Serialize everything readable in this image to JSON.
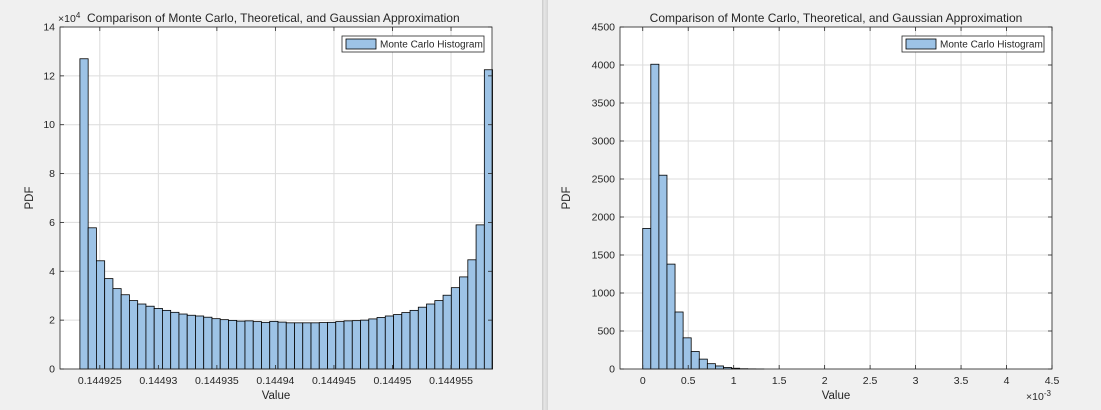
{
  "chart_data": [
    {
      "type": "bar",
      "title": "Comparison of Monte Carlo, Theoretical, and Gaussian Approximation",
      "xlabel": "Value",
      "ylabel": "PDF",
      "xlim": [
        0.1449216,
        0.1449585
      ],
      "ylim": [
        0,
        140000
      ],
      "y_exponent_label": "×10",
      "y_exponent_power": "4",
      "y_scale": 10000,
      "x_exponent_label": "",
      "x_exponent_power": "",
      "x_scale": 1,
      "x_tick_values": [
        0.144925,
        0.14493,
        0.144935,
        0.14494,
        0.144945,
        0.14495,
        0.144955
      ],
      "x_tick_labels": [
        "0.144925",
        "0.14493",
        "0.144935",
        "0.14494",
        "0.144945",
        "0.14495",
        "0.144955"
      ],
      "y_tick_values": [
        0,
        20000,
        40000,
        60000,
        80000,
        100000,
        120000,
        140000
      ],
      "y_tick_labels": [
        "0",
        "2",
        "4",
        "6",
        "8",
        "10",
        "12",
        "14"
      ],
      "grid": true,
      "legend_position": "top-right",
      "series": [
        {
          "name": "Monte Carlo Histogram",
          "color": "#9dc3e6",
          "edge_color": "#000000",
          "bin_start": 0.1449233,
          "bin_width": 7.05e-07,
          "values": [
            127000,
            57800,
            44300,
            37000,
            32900,
            30400,
            28000,
            26600,
            25700,
            24800,
            24000,
            23200,
            22500,
            22000,
            21700,
            21200,
            20600,
            20200,
            19900,
            19600,
            19700,
            19400,
            19100,
            19500,
            19200,
            18900,
            18900,
            18900,
            18900,
            19000,
            19100,
            19400,
            19700,
            19800,
            20000,
            20500,
            21100,
            21700,
            22300,
            23100,
            24000,
            25300,
            26600,
            28000,
            30200,
            33300,
            37700,
            44700,
            59000,
            122500
          ]
        }
      ]
    },
    {
      "type": "bar",
      "title": "Comparison of Monte Carlo, Theoretical, and Gaussian Approximation",
      "xlabel": "Value",
      "ylabel": "PDF",
      "xlim": [
        -0.00025,
        0.0045
      ],
      "ylim": [
        0,
        4500
      ],
      "y_exponent_label": "",
      "y_exponent_power": "",
      "y_scale": 1,
      "x_exponent_label": "×10",
      "x_exponent_power": "-3",
      "x_scale": 0.001,
      "x_tick_values": [
        0,
        0.0005,
        0.001,
        0.0015,
        0.002,
        0.0025,
        0.003,
        0.0035,
        0.004,
        0.0045
      ],
      "x_tick_labels": [
        "0",
        "0.5",
        "1",
        "1.5",
        "2",
        "2.5",
        "3",
        "3.5",
        "4",
        "4.5"
      ],
      "y_tick_values": [
        0,
        500,
        1000,
        1500,
        2000,
        2500,
        3000,
        3500,
        4000,
        4500
      ],
      "y_tick_labels": [
        "0",
        "500",
        "1000",
        "1500",
        "2000",
        "2500",
        "3000",
        "3500",
        "4000",
        "4500"
      ],
      "grid": true,
      "legend_position": "top-right",
      "series": [
        {
          "name": "Monte Carlo Histogram",
          "color": "#9dc3e6",
          "edge_color": "#000000",
          "bin_start": 0,
          "bin_width": 8.88e-05,
          "values": [
            1850,
            4010,
            2550,
            1380,
            750,
            410,
            230,
            130,
            70,
            40,
            20,
            10,
            4,
            2,
            1,
            0,
            0,
            0,
            0,
            0,
            0,
            0,
            0,
            0,
            0,
            0,
            0,
            0,
            0,
            0,
            0,
            0,
            0,
            0,
            0,
            0,
            0,
            0,
            0,
            0,
            0,
            0,
            0,
            0,
            0,
            0,
            0,
            0,
            0
          ]
        }
      ]
    }
  ]
}
